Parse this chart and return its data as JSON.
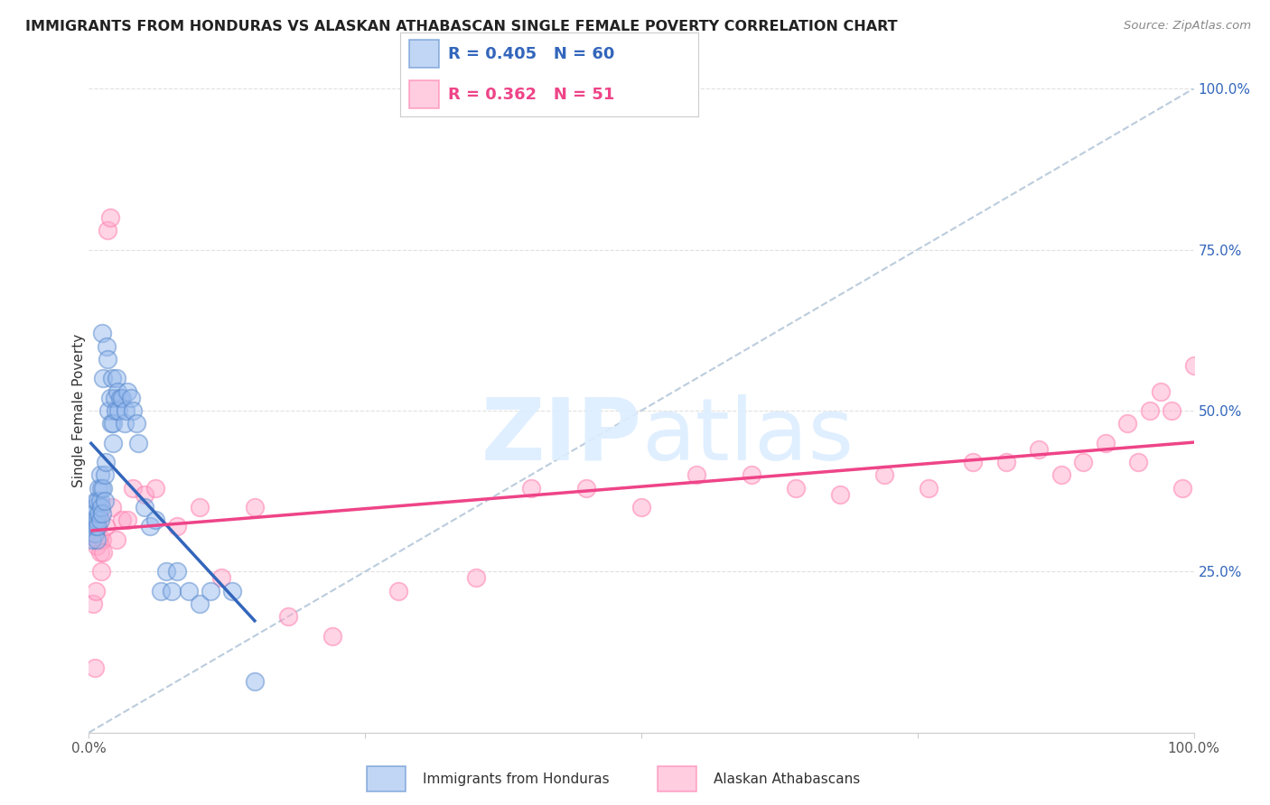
{
  "title": "IMMIGRANTS FROM HONDURAS VS ALASKAN ATHABASCAN SINGLE FEMALE POVERTY CORRELATION CHART",
  "source": "Source: ZipAtlas.com",
  "ylabel": "Single Female Poverty",
  "legend_blue_r": "0.405",
  "legend_blue_n": "60",
  "legend_pink_r": "0.362",
  "legend_pink_n": "51",
  "legend_label_blue": "Immigrants from Honduras",
  "legend_label_pink": "Alaskan Athabascans",
  "background_color": "#ffffff",
  "grid_color": "#e0e0e0",
  "blue_fill": "#99bbee",
  "blue_edge": "#5588cc",
  "pink_fill": "#ffaacc",
  "pink_edge": "#ff77aa",
  "blue_line": "#3366bb",
  "pink_line": "#ee4488",
  "diag_color": "#bbccdd",
  "blue_points_x": [
    0.002,
    0.003,
    0.004,
    0.004,
    0.005,
    0.005,
    0.006,
    0.006,
    0.007,
    0.007,
    0.008,
    0.008,
    0.009,
    0.009,
    0.01,
    0.01,
    0.01,
    0.011,
    0.011,
    0.012,
    0.012,
    0.013,
    0.013,
    0.014,
    0.014,
    0.015,
    0.016,
    0.017,
    0.018,
    0.019,
    0.02,
    0.021,
    0.022,
    0.022,
    0.023,
    0.024,
    0.025,
    0.026,
    0.027,
    0.028,
    0.03,
    0.032,
    0.033,
    0.035,
    0.038,
    0.04,
    0.043,
    0.045,
    0.05,
    0.055,
    0.06,
    0.065,
    0.07,
    0.075,
    0.08,
    0.09,
    0.1,
    0.11,
    0.13,
    0.15
  ],
  "blue_points_y": [
    0.33,
    0.3,
    0.34,
    0.32,
    0.31,
    0.35,
    0.32,
    0.36,
    0.3,
    0.33,
    0.32,
    0.36,
    0.34,
    0.38,
    0.33,
    0.36,
    0.4,
    0.35,
    0.38,
    0.34,
    0.62,
    0.55,
    0.38,
    0.36,
    0.4,
    0.42,
    0.6,
    0.58,
    0.5,
    0.52,
    0.48,
    0.55,
    0.48,
    0.45,
    0.52,
    0.5,
    0.55,
    0.53,
    0.5,
    0.52,
    0.52,
    0.48,
    0.5,
    0.53,
    0.52,
    0.5,
    0.48,
    0.45,
    0.35,
    0.32,
    0.33,
    0.22,
    0.25,
    0.22,
    0.25,
    0.22,
    0.2,
    0.22,
    0.22,
    0.08
  ],
  "pink_points_x": [
    0.003,
    0.004,
    0.005,
    0.006,
    0.007,
    0.008,
    0.009,
    0.01,
    0.011,
    0.012,
    0.013,
    0.015,
    0.017,
    0.019,
    0.021,
    0.025,
    0.03,
    0.035,
    0.04,
    0.05,
    0.06,
    0.08,
    0.1,
    0.12,
    0.15,
    0.18,
    0.22,
    0.28,
    0.35,
    0.4,
    0.45,
    0.5,
    0.55,
    0.6,
    0.64,
    0.68,
    0.72,
    0.76,
    0.8,
    0.83,
    0.86,
    0.88,
    0.9,
    0.92,
    0.94,
    0.95,
    0.96,
    0.97,
    0.98,
    0.99,
    1.0
  ],
  "pink_points_y": [
    0.31,
    0.2,
    0.1,
    0.22,
    0.29,
    0.32,
    0.3,
    0.28,
    0.25,
    0.3,
    0.28,
    0.32,
    0.78,
    0.8,
    0.35,
    0.3,
    0.33,
    0.33,
    0.38,
    0.37,
    0.38,
    0.32,
    0.35,
    0.24,
    0.35,
    0.18,
    0.15,
    0.22,
    0.24,
    0.38,
    0.38,
    0.35,
    0.4,
    0.4,
    0.38,
    0.37,
    0.4,
    0.38,
    0.42,
    0.42,
    0.44,
    0.4,
    0.42,
    0.45,
    0.48,
    0.42,
    0.5,
    0.53,
    0.5,
    0.38,
    0.57
  ],
  "yticks": [
    0.0,
    0.25,
    0.5,
    0.75,
    1.0
  ],
  "ytick_labels": [
    "",
    "25.0%",
    "50.0%",
    "75.0%",
    "100.0%"
  ],
  "xticks": [
    0.0,
    0.25,
    0.5,
    0.75,
    1.0
  ],
  "xtick_labels": [
    "0.0%",
    "",
    "",
    "",
    "100.0%"
  ],
  "xlim": [
    0.0,
    1.0
  ],
  "ylim": [
    0.0,
    1.0
  ]
}
